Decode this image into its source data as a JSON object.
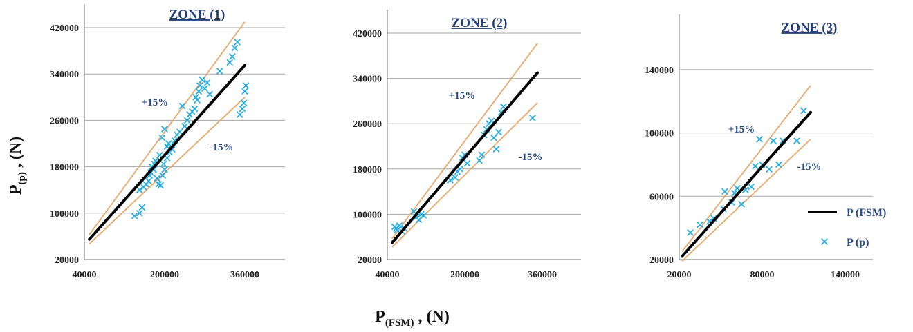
{
  "figure": {
    "ylabel_main": "P",
    "ylabel_sub": "(p)",
    "ylabel_tail": " , (N)",
    "xlabel_main": "P",
    "xlabel_sub": "(FSM)",
    "xlabel_tail": " , (N)"
  },
  "legend": {
    "items": [
      {
        "label": "P (FSM)",
        "marker": "line"
      },
      {
        "label": "P (p)",
        "marker": "x"
      }
    ]
  },
  "colors": {
    "fsm_line": "#000000",
    "band_lines": "#e8a86a",
    "points": "#29aee0",
    "grid": "#a6a6a6",
    "title": "#24407a",
    "band_text": "#2a4a86"
  },
  "chart_data": [
    {
      "type": "scatter",
      "title": "ZONE (1)",
      "xlim": [
        40000,
        440000
      ],
      "ylim": [
        20000,
        420000
      ],
      "xticks": [
        40000,
        200000,
        360000
      ],
      "yticks": [
        20000,
        100000,
        180000,
        260000,
        340000,
        420000
      ],
      "xtick_labels": [
        "40000",
        "200000",
        "360000"
      ],
      "ytick_labels": [
        "20000",
        "100000",
        "180000",
        "260000",
        "340000",
        "420000"
      ],
      "grid": "horizontal",
      "fsm_line": {
        "x": [
          50000,
          360000
        ],
        "y": [
          55000,
          355000
        ]
      },
      "band_upper": {
        "label": "+15%",
        "x": [
          50000,
          360000
        ],
        "y": [
          63000,
          430000
        ]
      },
      "band_lower": {
        "label": "-15%",
        "x": [
          50000,
          360000
        ],
        "y": [
          47000,
          300000
        ]
      },
      "points": {
        "x": [
          140000,
          150000,
          155000,
          150000,
          158000,
          163000,
          168000,
          170000,
          172000,
          175000,
          178000,
          180000,
          182000,
          185000,
          188000,
          192000,
          196000,
          200000,
          205000,
          210000,
          195000,
          200000,
          208000,
          190000,
          198000,
          205000,
          215000,
          220000,
          225000,
          230000,
          235000,
          240000,
          245000,
          250000,
          255000,
          260000,
          262000,
          265000,
          268000,
          270000,
          275000,
          280000,
          285000,
          290000,
          310000,
          330000,
          335000,
          340000,
          345000,
          350000,
          355000,
          358000,
          360000,
          362000
        ],
        "y": [
          95000,
          100000,
          110000,
          140000,
          145000,
          150000,
          155000,
          165000,
          170000,
          180000,
          175000,
          185000,
          190000,
          160000,
          150000,
          148000,
          165000,
          175000,
          195000,
          205000,
          230000,
          245000,
          220000,
          200000,
          185000,
          215000,
          210000,
          225000,
          235000,
          240000,
          285000,
          250000,
          260000,
          270000,
          275000,
          280000,
          300000,
          295000,
          310000,
          320000,
          330000,
          315000,
          325000,
          305000,
          345000,
          360000,
          370000,
          385000,
          395000,
          270000,
          280000,
          290000,
          310000,
          320000
        ]
      }
    },
    {
      "type": "scatter",
      "title": "ZONE (2)",
      "xlim": [
        40000,
        440000
      ],
      "ylim": [
        20000,
        420000
      ],
      "xticks": [
        40000,
        200000,
        360000
      ],
      "yticks": [
        20000,
        100000,
        180000,
        260000,
        340000,
        420000
      ],
      "xtick_labels": [
        "40000",
        "200000",
        "360000"
      ],
      "ytick_labels": [
        "20000",
        "100000",
        "180000",
        "260000",
        "340000",
        "420000"
      ],
      "grid": "horizontal",
      "fsm_line": {
        "x": [
          50000,
          350000
        ],
        "y": [
          50000,
          350000
        ]
      },
      "band_upper": {
        "label": "+15%",
        "x": [
          50000,
          350000
        ],
        "y": [
          57000,
          402000
        ]
      },
      "band_lower": {
        "label": "-15%",
        "x": [
          50000,
          350000
        ],
        "y": [
          42000,
          297000
        ]
      },
      "points": {
        "x": [
          55000,
          58000,
          60000,
          65000,
          70000,
          75000,
          95000,
          100000,
          105000,
          110000,
          115000,
          170000,
          180000,
          185000,
          190000,
          195000,
          200000,
          205000,
          230000,
          235000,
          240000,
          245000,
          250000,
          255000,
          260000,
          265000,
          270000,
          275000,
          280000,
          340000
        ],
        "y": [
          78000,
          75000,
          72000,
          80000,
          70000,
          75000,
          105000,
          95000,
          90000,
          100000,
          98000,
          160000,
          165000,
          175000,
          180000,
          200000,
          205000,
          190000,
          195000,
          205000,
          240000,
          250000,
          260000,
          265000,
          235000,
          215000,
          245000,
          280000,
          290000,
          270000
        ]
      }
    },
    {
      "type": "scatter",
      "title": "ZONE (3)",
      "xlim": [
        20000,
        160000
      ],
      "ylim": [
        20000,
        160000
      ],
      "xticks": [
        20000,
        80000,
        140000
      ],
      "yticks": [
        20000,
        60000,
        100000,
        140000
      ],
      "xtick_labels": [
        "20000",
        "80000",
        "140000"
      ],
      "ytick_labels": [
        "20000",
        "60000",
        "100000",
        "140000"
      ],
      "grid": "horizontal",
      "fsm_line": {
        "x": [
          22000,
          115000
        ],
        "y": [
          22000,
          113000
        ]
      },
      "band_upper": {
        "label": "+15%",
        "x": [
          22000,
          115000
        ],
        "y": [
          25000,
          130000
        ]
      },
      "band_lower": {
        "label": "-15%",
        "x": [
          22000,
          115000
        ],
        "y": [
          19000,
          96000
        ]
      },
      "points": {
        "x": [
          28000,
          35000,
          42000,
          45000,
          52000,
          53000,
          58000,
          60000,
          62000,
          65000,
          68000,
          72000,
          75000,
          78000,
          80000,
          85000,
          88000,
          92000,
          95000,
          105000,
          110000
        ],
        "y": [
          37000,
          42000,
          44000,
          46000,
          52000,
          63000,
          56000,
          62000,
          65000,
          55000,
          64000,
          66000,
          79000,
          96000,
          80000,
          77000,
          95000,
          80000,
          95000,
          95000,
          114000
        ]
      }
    }
  ]
}
